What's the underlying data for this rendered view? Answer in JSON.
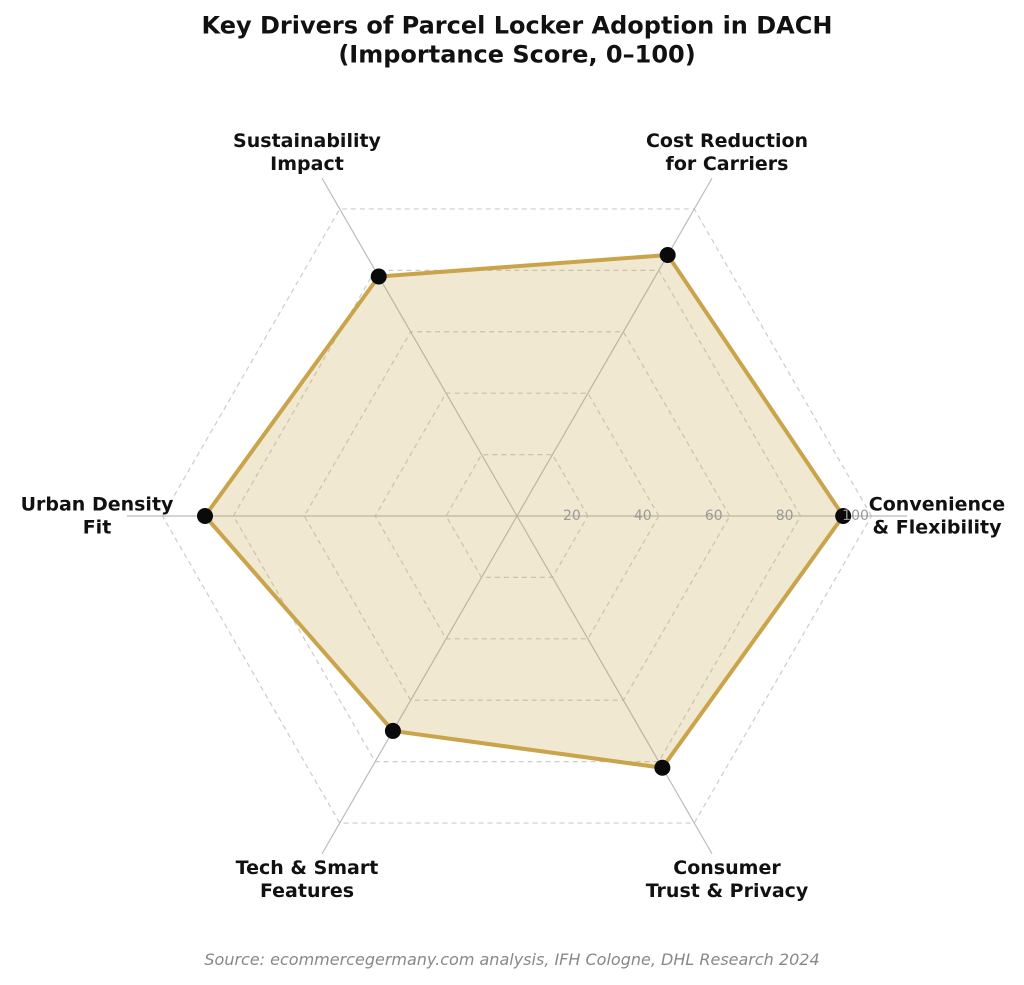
{
  "chart_data": {
    "type": "radar",
    "title": "Key Drivers of Parcel Locker Adoption in DACH\n(Importance Score, 0–100)",
    "categories": [
      "Convenience\n& Flexibility",
      "Cost Reduction\nfor Carriers",
      "Sustainability\nImpact",
      "Urban Density\nFit",
      "Tech & Smart\nFeatures",
      "Consumer\nTrust & Privacy"
    ],
    "series": [
      {
        "values": [
          92,
          85,
          78,
          88,
          70,
          82
        ],
        "color": "#c9a44a",
        "marker_color": "#0a0a0a"
      }
    ],
    "ylim": [
      0,
      110
    ],
    "yticks": [
      20,
      40,
      60,
      80,
      100
    ],
    "grid": true,
    "source": "Source: ecommercegermany.com analysis, IFH Cologne, DHL Research 2024"
  }
}
